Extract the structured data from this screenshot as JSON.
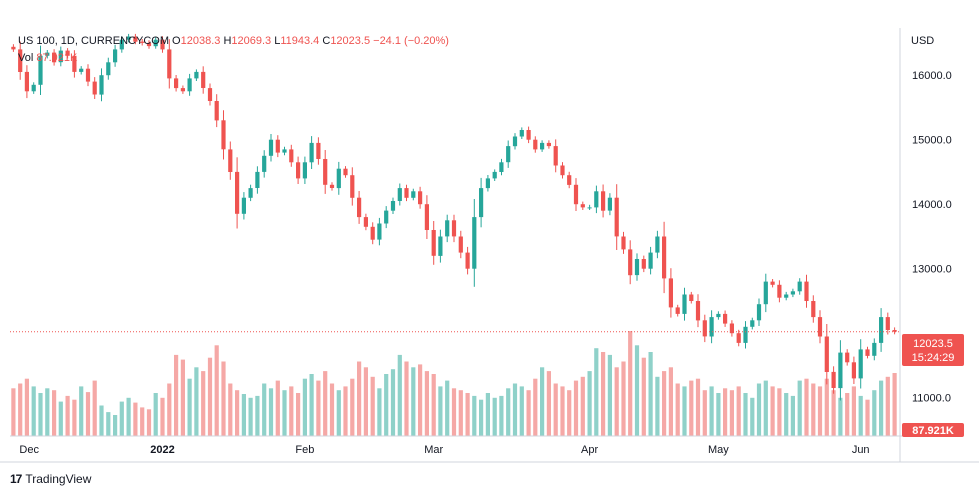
{
  "header": {
    "symbol": "US 100, 1D, CURRENCYCOM",
    "o_label": "O",
    "o_value": "12038.3",
    "h_label": "H",
    "h_value": "12069.3",
    "l_label": "L",
    "l_value": "11943.4",
    "c_label": "C",
    "c_value": "12023.5",
    "change": "−24.1 (−0.20%)",
    "vol_label": "Vol",
    "vol_value": "87.921K"
  },
  "price_axis": {
    "currency": "USD",
    "ticks": [
      "16000.0",
      "15000.0",
      "14000.0",
      "13000.0",
      "11000.0"
    ]
  },
  "last_price": {
    "value": "12023.5",
    "countdown": "15:24:29"
  },
  "volume_badge": "87.921K",
  "time_axis": [
    "Dec",
    "2022",
    "Feb",
    "Mar",
    "Apr",
    "May",
    "Jun"
  ],
  "brand": "TradingView",
  "colors": {
    "up": "#26a69a",
    "down": "#ef5350",
    "up_vol": "#8fd1c9",
    "down_vol": "#f5a8a6"
  },
  "chart_data": {
    "type": "candlestick",
    "title": "US 100, 1D, CURRENCYCOM",
    "ylim": [
      10500,
      16700
    ],
    "yticks": [
      16000,
      15000,
      14000,
      13000,
      11000
    ],
    "x_ticks": [
      {
        "label": "Dec",
        "index": 0
      },
      {
        "label": "2022",
        "index": 22
      },
      {
        "label": "Feb",
        "index": 43
      },
      {
        "label": "Mar",
        "index": 62
      },
      {
        "label": "Apr",
        "index": 85
      },
      {
        "label": "May",
        "index": 104
      },
      {
        "label": "Jun",
        "index": 125
      }
    ],
    "close": [
      16400,
      16050,
      15750,
      15850,
      16300,
      16350,
      16200,
      16380,
      16300,
      16050,
      16100,
      15900,
      15700,
      16000,
      16200,
      16400,
      16550,
      16600,
      16520,
      16500,
      16450,
      16550,
      16400,
      15950,
      15800,
      15750,
      15950,
      16050,
      15800,
      15600,
      15300,
      14850,
      14500,
      13850,
      14100,
      14250,
      14500,
      14750,
      15000,
      14800,
      14850,
      14650,
      14400,
      14650,
      14950,
      14700,
      14300,
      14250,
      14550,
      14450,
      14100,
      13800,
      13650,
      13450,
      13700,
      13900,
      14050,
      14250,
      14100,
      14200,
      14000,
      13600,
      13200,
      13500,
      13750,
      13500,
      13250,
      13000,
      13800,
      14250,
      14400,
      14500,
      14650,
      14900,
      15050,
      15150,
      15000,
      14850,
      14950,
      14900,
      14600,
      14450,
      14300,
      14000,
      13950,
      13950,
      14200,
      13900,
      14100,
      13500,
      13300,
      12900,
      13150,
      13000,
      13250,
      13500,
      12850,
      12400,
      12300,
      12600,
      12500,
      12200,
      11950,
      12250,
      12300,
      12150,
      12000,
      11850,
      12100,
      12200,
      12450,
      12800,
      12750,
      12550,
      12600,
      12650,
      12800,
      12500,
      12250,
      11950,
      11400,
      11150,
      11700,
      11550,
      11300,
      11750,
      11650,
      11850,
      12250,
      12050,
      12023.5
    ],
    "volume": [
      50,
      55,
      60,
      52,
      45,
      50,
      48,
      36,
      42,
      38,
      52,
      46,
      58,
      32,
      25,
      22,
      36,
      40,
      35,
      30,
      28,
      45,
      40,
      55,
      85,
      80,
      60,
      72,
      68,
      82,
      95,
      78,
      55,
      48,
      44,
      40,
      42,
      55,
      50,
      58,
      48,
      52,
      45,
      60,
      65,
      58,
      68,
      55,
      48,
      52,
      60,
      78,
      72,
      62,
      50,
      65,
      70,
      85,
      78,
      72,
      75,
      68,
      65,
      52,
      58,
      50,
      48,
      45,
      42,
      38,
      45,
      40,
      42,
      50,
      55,
      52,
      48,
      60,
      72,
      68,
      55,
      52,
      48,
      58,
      62,
      68,
      92,
      88,
      85,
      72,
      78,
      110,
      95,
      82,
      88,
      62,
      68,
      72,
      55,
      52,
      58,
      60,
      48,
      52,
      45,
      50,
      48,
      52,
      45,
      40,
      55,
      58,
      52,
      50,
      45,
      42,
      58,
      60,
      55,
      52,
      60,
      48,
      40,
      45,
      52,
      42,
      38,
      48,
      58,
      62,
      66
    ]
  }
}
